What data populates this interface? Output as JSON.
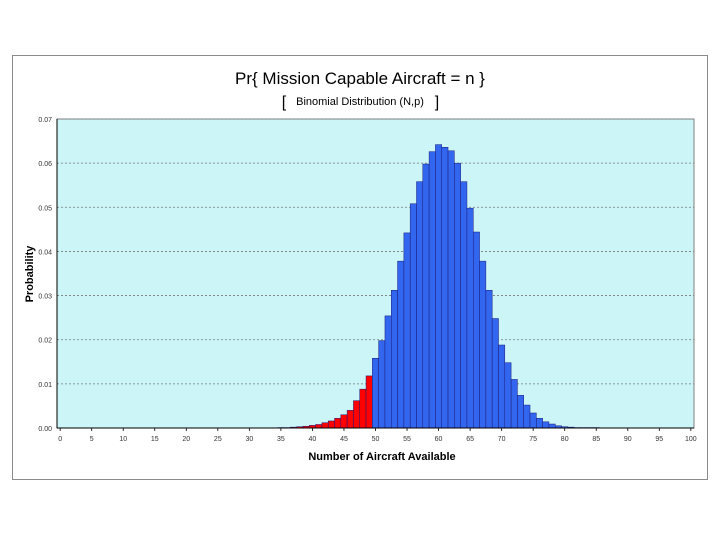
{
  "chart_data": {
    "type": "bar",
    "title": "Pr{ Mission Capable Aircraft = n }",
    "subtitle_open": "[",
    "subtitle_text": "Binomial Distribution (N,p)",
    "subtitle_close": "]",
    "xlabel": "Number of Aircraft Available",
    "ylabel": "Probability",
    "xlim": [
      0,
      100
    ],
    "ylim": [
      0,
      0.07
    ],
    "x_ticks": [
      "0",
      "5",
      "10",
      "15",
      "20",
      "25",
      "30",
      "35",
      "40",
      "45",
      "50",
      "55",
      "60",
      "65",
      "70",
      "75",
      "80",
      "85",
      "90",
      "95",
      "100"
    ],
    "y_ticks": [
      "0.00",
      "0.01",
      "0.02",
      "0.03",
      "0.04",
      "0.05",
      "0.06",
      "0.07"
    ],
    "grid": true,
    "legend": "none",
    "colors": {
      "plot_bg": "#ccf5f7",
      "highlight": "#ff0000",
      "main": "#3366ee",
      "edge": "#1a1a7a"
    },
    "series": [
      {
        "highlight_below": 50,
        "x": [
          35,
          36,
          37,
          38,
          39,
          40,
          41,
          42,
          43,
          44,
          45,
          46,
          47,
          48,
          49,
          50,
          51,
          52,
          53,
          54,
          55,
          56,
          57,
          58,
          59,
          60,
          61,
          62,
          63,
          64,
          65,
          66,
          67,
          68,
          69,
          70,
          71,
          72,
          73,
          74,
          75,
          76,
          77,
          78,
          79,
          80,
          81,
          82,
          83,
          84,
          85
        ],
        "values": [
          0.0001,
          0.0001,
          0.0002,
          0.0003,
          0.0004,
          0.0006,
          0.0008,
          0.0012,
          0.0016,
          0.0022,
          0.003,
          0.004,
          0.0062,
          0.0088,
          0.0118,
          0.0158,
          0.0198,
          0.0254,
          0.0312,
          0.0378,
          0.0442,
          0.0508,
          0.0558,
          0.0598,
          0.0626,
          0.0642,
          0.0636,
          0.0628,
          0.06,
          0.0558,
          0.0498,
          0.0444,
          0.0378,
          0.0312,
          0.0248,
          0.0188,
          0.0148,
          0.011,
          0.0074,
          0.0052,
          0.0034,
          0.0022,
          0.0014,
          0.0009,
          0.0005,
          0.0003,
          0.0002,
          0.0001,
          0.0001,
          0.0001,
          0.0001
        ]
      }
    ]
  }
}
